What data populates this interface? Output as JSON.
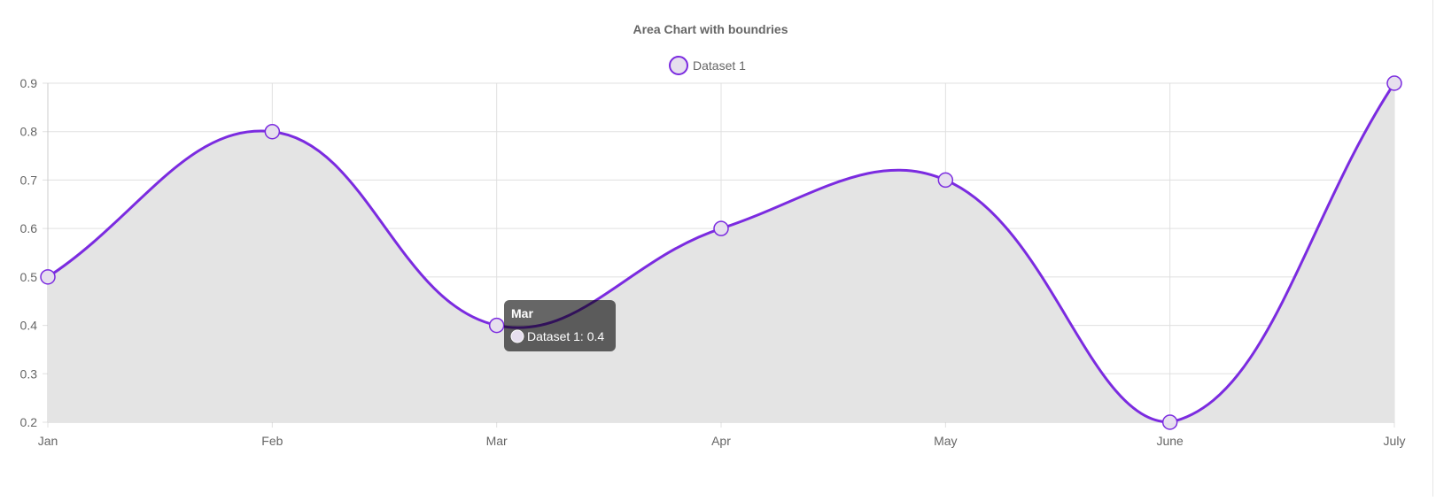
{
  "chart_data": {
    "type": "area",
    "title": "Area Chart with boundries",
    "categories": [
      "Jan",
      "Feb",
      "Mar",
      "Apr",
      "May",
      "June",
      "July"
    ],
    "series": [
      {
        "name": "Dataset 1",
        "values": [
          0.5,
          0.8,
          0.4,
          0.6,
          0.7,
          0.2,
          0.9
        ]
      }
    ],
    "yticks": [
      "0.2",
      "0.3",
      "0.4",
      "0.5",
      "0.6",
      "0.7",
      "0.8",
      "0.9"
    ],
    "ylim": [
      0.2,
      0.9
    ],
    "grid": true,
    "legend_position": "top",
    "colors": {
      "line": "#7b2be0",
      "fill": "#e4e4e4",
      "point_fill": "#e6dfee",
      "grid": "#e0e0e0",
      "text": "#666666"
    },
    "tooltip": {
      "title": "Mar",
      "label": "Dataset 1: 0.4"
    }
  }
}
